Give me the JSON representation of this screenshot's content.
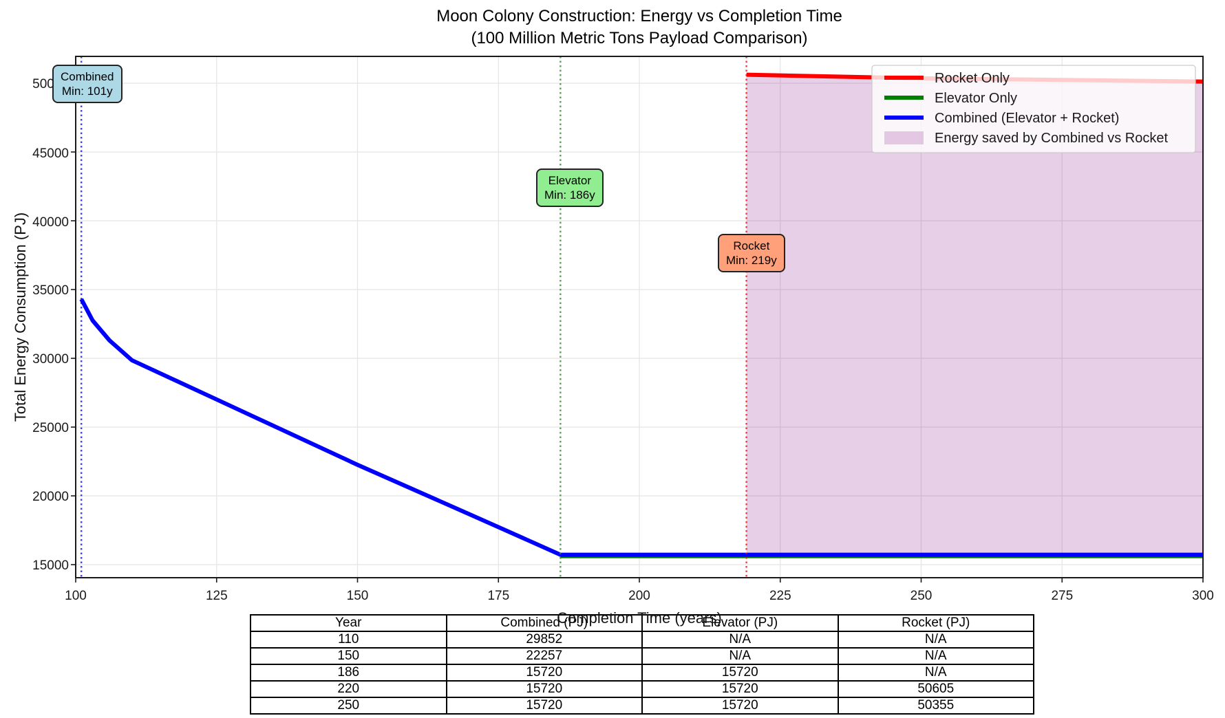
{
  "figure": {
    "title": "Moon Colony Construction: Energy vs Completion Time",
    "subtitle": "(100 Million Metric Tons Payload Comparison)"
  },
  "chart_data": {
    "type": "line",
    "title": "Moon Colony Construction: Energy vs Completion Time",
    "subtitle": "(100 Million Metric Tons Payload Comparison)",
    "xlabel": "Completion Time (years)",
    "ylabel": "Total Energy Consumption (PJ)",
    "xlim": [
      100,
      300
    ],
    "ylim": [
      14050,
      51950
    ],
    "x_ticks": [
      "100",
      "125",
      "150",
      "175",
      "200",
      "225",
      "250",
      "275",
      "300"
    ],
    "y_ticks": [
      "15000",
      "20000",
      "25000",
      "30000",
      "35000",
      "40000",
      "45000",
      "50000"
    ],
    "grid": true,
    "legend_position": "upper right",
    "series": [
      {
        "name": "Rocket Only",
        "color": "#ff0000",
        "x": [
          219,
          250,
          300
        ],
        "y": [
          50620,
          50355,
          50120
        ]
      },
      {
        "name": "Elevator Only",
        "color": "#008000",
        "x": [
          186,
          300
        ],
        "y": [
          15720,
          15720
        ]
      },
      {
        "name": "Combined (Elevator + Rocket)",
        "color": "#0000ff",
        "x": [
          101,
          103,
          106,
          110,
          125,
          150,
          170,
          186,
          300
        ],
        "y": [
          34300,
          32750,
          31300,
          29852,
          27010,
          22257,
          18640,
          15720,
          15720
        ]
      }
    ],
    "fill_between": {
      "name": "Energy saved by Combined vs Rocket",
      "color": "#800080",
      "opacity": 0.19,
      "x_start": 219,
      "x_end": 300
    },
    "vlines": [
      {
        "x": 101,
        "color": "#0000ff",
        "box_color": "#add8e6",
        "label_line1": "Combined",
        "label_line2": "Min: 101y"
      },
      {
        "x": 186,
        "color": "#228b22",
        "box_color": "#90ee90",
        "label_line1": "Elevator",
        "label_line2": "Min: 186y"
      },
      {
        "x": 219,
        "color": "#ff0000",
        "box_color": "#ffa07a",
        "label_line1": "Rocket",
        "label_line2": "Min: 219y"
      }
    ]
  },
  "table": {
    "headers": [
      "Year",
      "Combined (PJ)",
      "Elevator (PJ)",
      "Rocket (PJ)"
    ],
    "rows": [
      [
        "110",
        "29852",
        "N/A",
        "N/A"
      ],
      [
        "150",
        "22257",
        "N/A",
        "N/A"
      ],
      [
        "186",
        "15720",
        "15720",
        "N/A"
      ],
      [
        "220",
        "15720",
        "15720",
        "50605"
      ],
      [
        "250",
        "15720",
        "15720",
        "50355"
      ]
    ]
  }
}
